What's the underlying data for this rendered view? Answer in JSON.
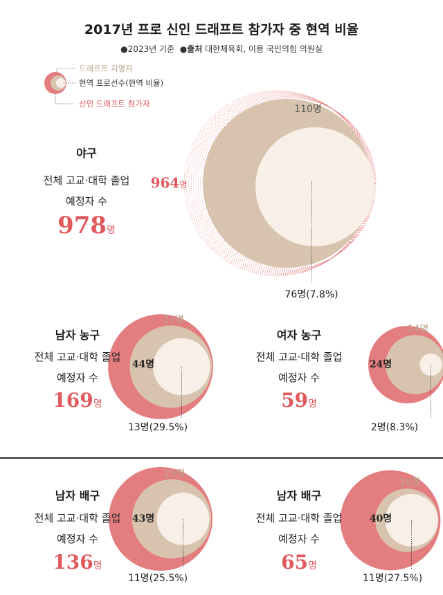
{
  "title": "2017년 프로 신인 드래프트 참가자 중 현역 비율",
  "meta": {
    "basis": "●2023년 기준",
    "source_label": "●출처",
    "source_text": " 대한체육회, 이용 국민의힘 의원실"
  },
  "legend": {
    "draft_applicants": "드래프트 지명자",
    "active_players": "현역 프로선수(현역 비율)",
    "rookie_applicants": "신인 드래프트 참가자"
  },
  "colors": {
    "applicants": "#e37d7f",
    "drafted": "#d8c4ae",
    "active": "#f8f0e8",
    "accent_text": "#e05a5d",
    "drafted_text": "#b9a48e"
  },
  "common": {
    "line1": "전체 고교·대학 졸업",
    "line2": "예정자 수",
    "unit": "명"
  },
  "chart_data": [
    {
      "type": "bubble",
      "sport": "야구",
      "graduates": 978,
      "applicants": 964,
      "drafted": 110,
      "active": 76,
      "active_pct": 7.8,
      "applicants_label": "964",
      "drafted_label": "110명",
      "active_label": "76명(7.8%)",
      "graduates_label": "978"
    },
    {
      "type": "bubble",
      "sport": "남자 농구",
      "graduates": 169,
      "applicants": 44,
      "drafted": 27,
      "active": 13,
      "active_pct": 29.5,
      "applicants_label": "44명",
      "drafted_label": "27명",
      "active_label": "13명(29.5%)",
      "graduates_label": "169"
    },
    {
      "type": "bubble",
      "sport": "여자 농구",
      "graduates": 59,
      "applicants": 24,
      "drafted": 14,
      "active": 2,
      "active_pct": 8.3,
      "applicants_label": "24명",
      "drafted_label": "14명",
      "active_label": "2명(8.3%)",
      "graduates_label": "59"
    },
    {
      "type": "bubble",
      "sport": "남자 배구",
      "graduates": 136,
      "applicants": 43,
      "drafted": 25,
      "active": 11,
      "active_pct": 25.5,
      "applicants_label": "43명",
      "drafted_label": "25명",
      "active_label": "11명(25.5%)",
      "graduates_label": "136"
    },
    {
      "type": "bubble",
      "sport": "남자 배구",
      "graduates": 65,
      "applicants": 40,
      "drafted": 16,
      "active": 11,
      "active_pct": 27.5,
      "applicants_label": "40명",
      "drafted_label": "16명",
      "active_label": "11명(27.5%)",
      "graduates_label": "65"
    }
  ]
}
